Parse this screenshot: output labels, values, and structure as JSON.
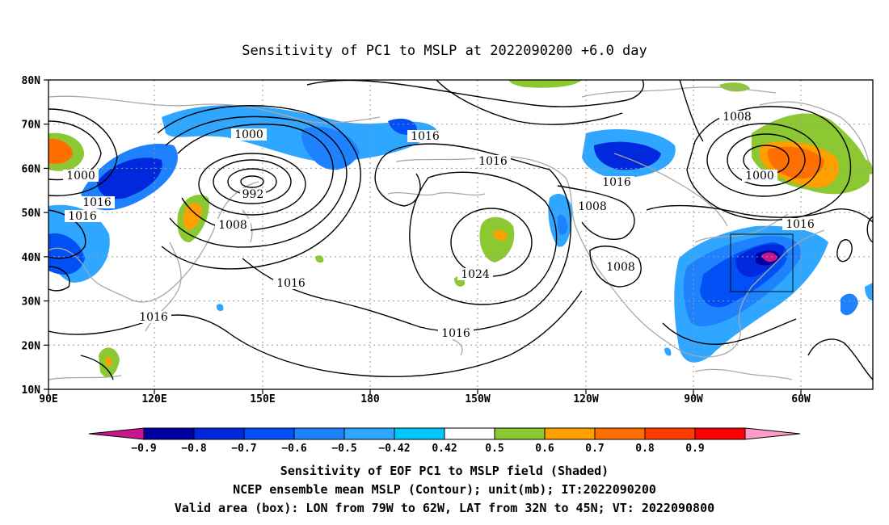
{
  "title": "Sensitivity of PC1 to MSLP at 2022090200 +6.0 day",
  "axes": {
    "lat_labels": [
      "80N",
      "70N",
      "60N",
      "50N",
      "40N",
      "30N",
      "20N",
      "10N"
    ],
    "lon_labels": [
      "90E",
      "120E",
      "150E",
      "180",
      "150W",
      "120W",
      "90W",
      "60W"
    ]
  },
  "contour_labels": [
    "1000",
    "1016",
    "1016",
    "1016",
    "1000",
    "1008",
    "1016",
    "992",
    "1008",
    "1008",
    "1016",
    "1024",
    "1016",
    "1016",
    "1008",
    "1008",
    "1016",
    "1000"
  ],
  "colorbar": {
    "labels": [
      "−0.9",
      "−0.8",
      "−0.7",
      "−0.6",
      "−0.5",
      "−0.42",
      "0.42",
      "0.5",
      "0.6",
      "0.7",
      "0.8",
      "0.9"
    ],
    "colors": [
      "#c8168c",
      "#0000a0",
      "#0028dc",
      "#0050f5",
      "#1e82ff",
      "#2fa6ff",
      "#00c8ff",
      "#ffffff",
      "#8cc832",
      "#ffa000",
      "#ff6e00",
      "#ff3c00",
      "#ff0000",
      "#ff9bc8"
    ]
  },
  "captions": [
    "Sensitivity of EOF PC1 to MSLP field (Shaded)",
    "NCEP ensemble mean MSLP (Contour); unit(mb); IT:2022090200",
    "Valid area (box): LON from 79W to 62W, LAT from 32N to 45N; VT: 2022090800"
  ],
  "valid_box": {
    "lon_w": -79,
    "lon_e": -62,
    "lat_s": 32,
    "lat_n": 45
  }
}
